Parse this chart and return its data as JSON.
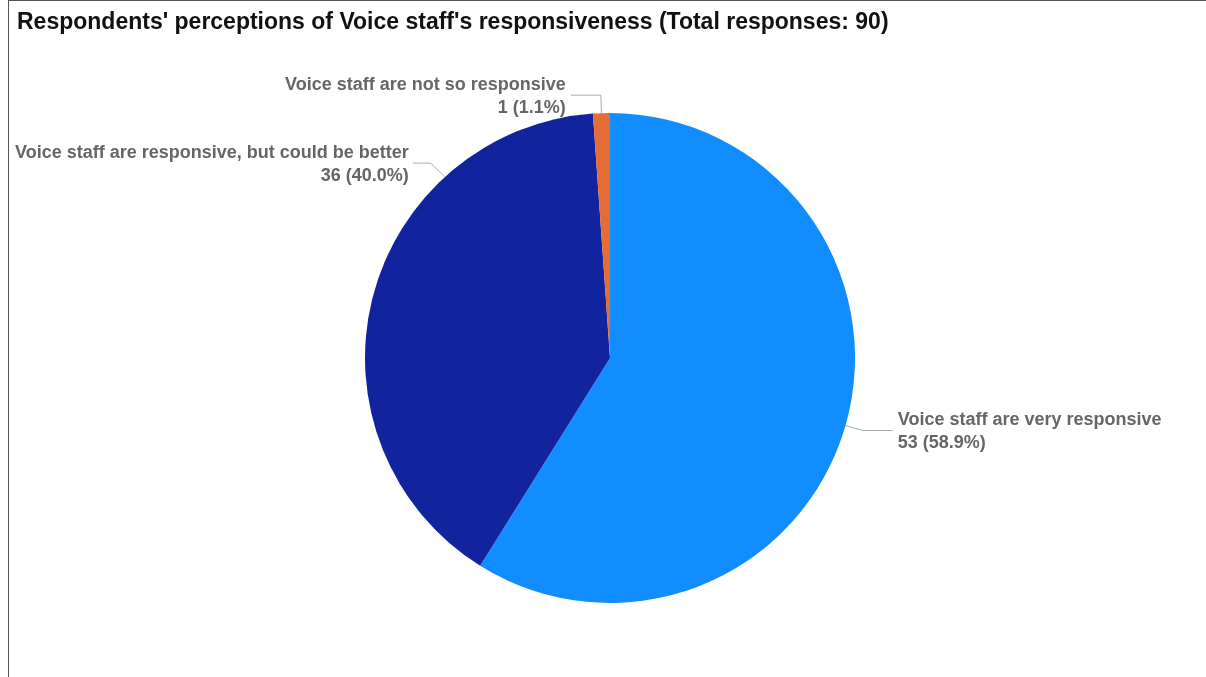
{
  "chart_data": {
    "type": "pie",
    "title": "Respondents' perceptions of Voice staff's responsiveness (Total responses: 90)",
    "categories": [
      "Voice staff are very responsive",
      "Voice staff are responsive, but could be better",
      "Voice staff are not so responsive"
    ],
    "values": [
      53,
      36,
      1
    ],
    "value_labels": [
      "53 (58.9%)",
      "36 (40.0%)",
      "1 (1.1%)"
    ],
    "colors": [
      "#118dff",
      "#12239e",
      "#e66c37"
    ],
    "legend": false
  }
}
